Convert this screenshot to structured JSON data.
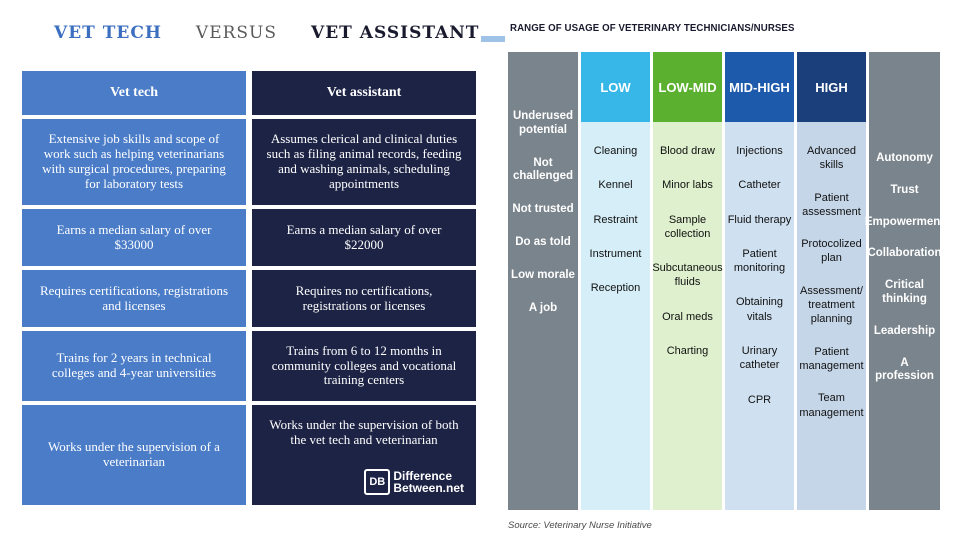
{
  "left": {
    "title": {
      "part1": "VET TECH",
      "part2": "VERSUS",
      "part3": "VET ASSISTANT"
    },
    "headers": {
      "tech": "Vet tech",
      "assistant": "Vet assistant"
    },
    "rows": [
      {
        "tech": "Extensive job skills and scope of work such as helping veterinarians with surgical procedures, preparing for laboratory tests",
        "assistant": "Assumes clerical and clinical duties such as filing animal records, feeding and washing animals, scheduling appointments"
      },
      {
        "tech": "Earns a median salary of over $33000",
        "assistant": "Earns a median salary of over $22000"
      },
      {
        "tech": "Requires certifications, registrations and licenses",
        "assistant": "Requires no certifications, registrations or licenses"
      },
      {
        "tech": "Trains for 2 years in technical colleges and 4-year universities",
        "assistant": "Trains from 6 to 12 months in community colleges and vocational training centers"
      },
      {
        "tech": "Works under the supervision of a veterinarian",
        "assistant": "Works under the supervision of both the vet tech and veterinarian"
      }
    ],
    "logo": {
      "mark": "DB",
      "line1": "Difference",
      "line2": "Between.net"
    }
  },
  "right": {
    "title": "RANGE OF USAGE OF VETERINARY TECHNICIANS/NURSES",
    "left_side": [
      "Underused potential",
      "Not challenged",
      "Not trusted",
      "Do as told",
      "Low morale",
      "A job"
    ],
    "levels": [
      {
        "label": "LOW",
        "items": [
          "Cleaning",
          "Kennel",
          "Restraint",
          "Instrument",
          "Reception"
        ]
      },
      {
        "label": "LOW-MID",
        "items": [
          "Blood draw",
          "Minor labs",
          "Sample collection",
          "Subcutaneous fluids",
          "Oral meds",
          "Charting"
        ]
      },
      {
        "label": "MID-HIGH",
        "items": [
          "Injections",
          "Catheter",
          "Fluid therapy",
          "Patient monitoring",
          "Obtaining vitals",
          "Urinary catheter",
          "CPR"
        ]
      },
      {
        "label": "HIGH",
        "items": [
          "Advanced skills",
          "Patient assessment",
          "Protocolized plan",
          "Assessment/ treatment planning",
          "Patient management",
          "Team management"
        ]
      }
    ],
    "right_side": [
      "Autonomy",
      "Trust",
      "Empowerment",
      "Collaboration",
      "Critical thinking",
      "Leadership",
      "A profession"
    ],
    "source": "Source: Veterinary Nurse Initiative"
  }
}
